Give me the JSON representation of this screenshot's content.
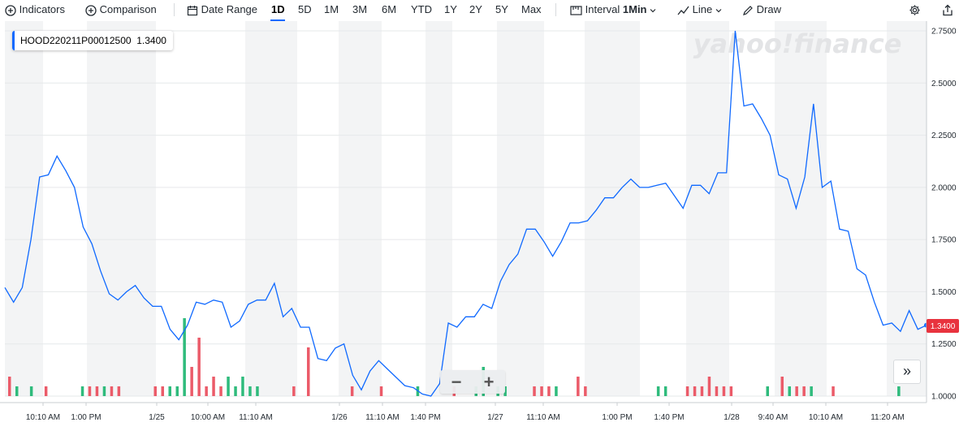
{
  "toolbar": {
    "indicators_label": "Indicators",
    "comparison_label": "Comparison",
    "date_range_label": "Date Range",
    "ranges": [
      "1D",
      "5D",
      "1M",
      "3M",
      "6M",
      "YTD",
      "1Y",
      "2Y",
      "5Y",
      "Max"
    ],
    "active_range": "1D",
    "interval_label": "Interval",
    "interval_value": "1Min",
    "line_label": "Line",
    "draw_label": "Draw"
  },
  "legend": {
    "symbol": "HOOD220211P00012500",
    "value": "1.3400"
  },
  "watermark": "yahoo!finance",
  "price_label": "1.3400",
  "colors": {
    "line": "#0f69ff",
    "up": "#2fbb7c",
    "down": "#eb5b69",
    "price_tag": "#e8333e",
    "band": "#f3f4f5",
    "accent": "#0f69ff"
  },
  "zoom": {
    "minus": "−",
    "plus": "+"
  },
  "expand_label": "»",
  "chart_data": {
    "type": "line",
    "title": "",
    "series": [
      {
        "name": "HOOD220211P00012500",
        "values": [
          1.52,
          1.45,
          1.52,
          1.75,
          2.05,
          2.06,
          2.15,
          2.08,
          2.0,
          1.81,
          1.73,
          1.6,
          1.49,
          1.46,
          1.5,
          1.53,
          1.47,
          1.43,
          1.43,
          1.32,
          1.27,
          1.34,
          1.45,
          1.44,
          1.46,
          1.45,
          1.33,
          1.36,
          1.44,
          1.46,
          1.46,
          1.54,
          1.38,
          1.42,
          1.33,
          1.33,
          1.18,
          1.17,
          1.23,
          1.25,
          1.1,
          1.03,
          1.12,
          1.17,
          1.13,
          1.09,
          1.05,
          1.04,
          1.01,
          1.0,
          1.06,
          1.35,
          1.33,
          1.38,
          1.38,
          1.44,
          1.42,
          1.55,
          1.63,
          1.68,
          1.8,
          1.8,
          1.74,
          1.67,
          1.74,
          1.83,
          1.83,
          1.84,
          1.89,
          1.95,
          1.95,
          2.0,
          2.04,
          2.0,
          2.0,
          2.01,
          2.02,
          1.96,
          1.9,
          2.01,
          2.01,
          1.97,
          2.07,
          2.07,
          2.75,
          2.39,
          2.4,
          2.33,
          2.25,
          2.06,
          2.04,
          1.9,
          2.05,
          2.4,
          2.0,
          2.03,
          1.8,
          1.79,
          1.61,
          1.58,
          1.45,
          1.34,
          1.35,
          1.31,
          1.41,
          1.32,
          1.34
        ]
      }
    ],
    "volume": {
      "values": [
        2,
        1,
        0,
        1,
        0,
        1,
        0,
        0,
        0,
        0,
        1,
        1,
        1,
        1,
        1,
        1,
        0,
        0,
        0,
        0,
        1,
        1,
        1,
        1,
        8,
        3,
        6,
        1,
        2,
        1,
        2,
        1,
        2,
        1,
        1,
        0,
        0,
        0,
        0,
        1,
        0,
        5,
        0,
        0,
        0,
        0,
        0,
        1,
        0,
        0,
        0,
        1,
        0,
        0,
        0,
        0,
        1,
        0,
        0,
        0,
        0,
        1,
        0,
        0,
        1,
        3,
        0,
        1,
        1,
        0,
        0,
        0,
        1,
        1,
        1,
        1,
        0,
        0,
        2,
        1,
        0,
        0,
        0,
        0,
        0,
        0,
        0,
        0,
        0,
        1,
        1,
        0,
        0,
        1,
        1,
        1,
        2,
        1,
        1,
        1,
        0,
        0,
        0,
        0,
        1,
        0,
        2,
        1,
        1,
        1,
        1,
        0,
        0,
        1,
        0,
        0,
        0,
        0,
        0,
        0,
        0,
        0,
        1,
        0,
        0,
        0
      ],
      "directions": [
        "down",
        "up",
        "up",
        "up",
        "up",
        "down",
        "down",
        "down",
        "down",
        "down",
        "up",
        "down",
        "down",
        "up",
        "down",
        "down",
        "up",
        "up",
        "up",
        "up",
        "down",
        "down",
        "up",
        "up",
        "up",
        "down",
        "down",
        "down",
        "down",
        "down",
        "up",
        "up",
        "up",
        "up",
        "up",
        "up",
        "up",
        "up",
        "up",
        "down",
        "down",
        "down",
        "up",
        "up",
        "up",
        "down",
        "down",
        "down",
        "down",
        "down",
        "up",
        "down",
        "down",
        "down",
        "down",
        "down",
        "up",
        "up",
        "up",
        "up",
        "down",
        "down",
        "up",
        "up",
        "up",
        "up",
        "up",
        "up",
        "up",
        "down",
        "down",
        "down",
        "down",
        "down",
        "down",
        "up",
        "up",
        "up",
        "down",
        "down",
        "up",
        "up",
        "down",
        "down",
        "down",
        "down",
        "down",
        "up",
        "up",
        "up",
        "up",
        "down",
        "up",
        "down",
        "down",
        "down",
        "down",
        "down",
        "down",
        "down",
        "down",
        "up",
        "up",
        "up",
        "up",
        "up",
        "down",
        "up",
        "down",
        "down",
        "up",
        "up",
        "down",
        "down",
        "up",
        "up",
        "up",
        "up",
        "up",
        "up",
        "up",
        "up",
        "up",
        "down",
        "up",
        "up"
      ]
    },
    "y_ticks": [
      "2.7500",
      "2.5000",
      "2.2500",
      "2.0000",
      "1.7500",
      "1.5000",
      "1.2500",
      "1.0000"
    ],
    "ylim": [
      1.0,
      2.75
    ],
    "x_ticks": [
      "10:10 AM",
      "1:00 PM",
      "1/25",
      "10:00 AM",
      "11:10 AM",
      "1/26",
      "11:10 AM",
      "1:40 PM",
      "1/27",
      "11:10 AM",
      "1:00 PM",
      "1:40 PM",
      "1/28",
      "9:40 AM",
      "10:10 AM",
      "11:20 AM"
    ],
    "grid": true,
    "legend_position": "top-left"
  }
}
